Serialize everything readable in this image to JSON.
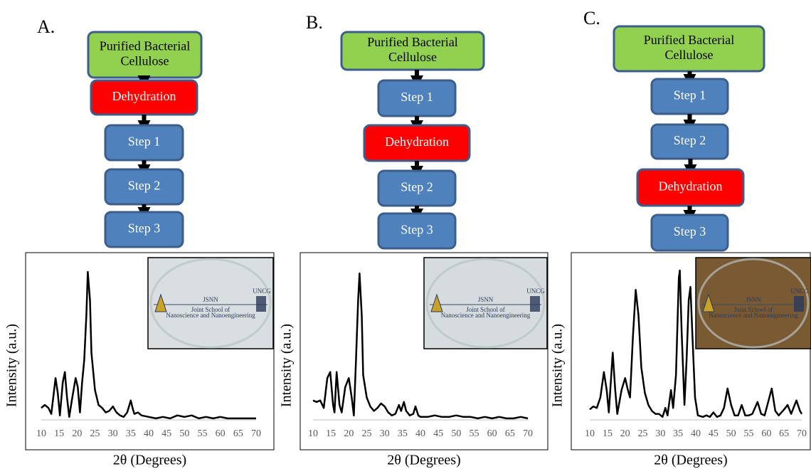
{
  "panels": [
    {
      "label": "A.",
      "flow": [
        {
          "lines": [
            "Purified Bacterial",
            "Cellulose"
          ],
          "color": "#92d050"
        },
        {
          "lines": [
            "Dehydration"
          ],
          "color": "#ff0000"
        },
        {
          "lines": [
            "Step 1"
          ],
          "color": "#4f81bd"
        },
        {
          "lines": [
            "Step 2"
          ],
          "color": "#4f81bd"
        },
        {
          "lines": [
            "Step 3"
          ],
          "color": "#4f81bd"
        }
      ],
      "inset": {
        "title": "JSNN",
        "subtitle": [
          "Joint School of",
          "Nanoscience and Nanoengineering"
        ],
        "logo": "UNCG",
        "color": "#d9dfe0"
      }
    },
    {
      "label": "B.",
      "flow": [
        {
          "lines": [
            "Purified Bacterial",
            "Cellulose"
          ],
          "color": "#92d050"
        },
        {
          "lines": [
            "Step 1"
          ],
          "color": "#4f81bd"
        },
        {
          "lines": [
            "Dehydration"
          ],
          "color": "#ff0000"
        },
        {
          "lines": [
            "Step 2"
          ],
          "color": "#4f81bd"
        },
        {
          "lines": [
            "Step 3"
          ],
          "color": "#4f81bd"
        }
      ],
      "inset": {
        "title": "JSNN",
        "subtitle": [
          "Joint School of",
          "Nanoscience and Nanoengineering"
        ],
        "logo": "UNCG",
        "color": "#d6dcdd"
      }
    },
    {
      "label": "C.",
      "flow": [
        {
          "lines": [
            "Purified Bacterial",
            "Cellulose"
          ],
          "color": "#92d050"
        },
        {
          "lines": [
            "Step 1"
          ],
          "color": "#4f81bd"
        },
        {
          "lines": [
            "Step 2"
          ],
          "color": "#4f81bd"
        },
        {
          "lines": [
            "Dehydration"
          ],
          "color": "#ff0000"
        },
        {
          "lines": [
            "Step 3"
          ],
          "color": "#4f81bd"
        }
      ],
      "inset": {
        "title": "JSNN",
        "subtitle": [
          "Joint School of",
          "Nanoscience and Nanoengineering"
        ],
        "logo": "UNCG",
        "color": "#7a5a32"
      }
    }
  ],
  "chart_data": [
    {
      "type": "line",
      "x_label": "2θ (Degrees)",
      "y_label": "Intensity (a.u.)",
      "xlim": [
        10,
        70
      ],
      "ylim": [
        0,
        100
      ],
      "xticks": [
        10,
        15,
        20,
        25,
        30,
        35,
        40,
        45,
        50,
        55,
        60,
        65,
        70
      ],
      "x": [
        10,
        11,
        12,
        12.8,
        13.6,
        14,
        14.6,
        15.2,
        16,
        16.6,
        17.2,
        17.8,
        18.6,
        19.6,
        20.2,
        20.8,
        21.4,
        22,
        22.6,
        23,
        23.6,
        24,
        25,
        26,
        27,
        28,
        29,
        30,
        31,
        32,
        33,
        34,
        35,
        35.6,
        36,
        37,
        38,
        40,
        42,
        44,
        46,
        48,
        50,
        52,
        54,
        56,
        58,
        60,
        62,
        64,
        66,
        68,
        70
      ],
      "series": [
        {
          "color": "#000000",
          "values": [
            8,
            10,
            8,
            4,
            20,
            28,
            18,
            3,
            25,
            32,
            15,
            2,
            14,
            28,
            22,
            5,
            25,
            40,
            70,
            99,
            80,
            45,
            20,
            10,
            8,
            5,
            6,
            9,
            5,
            3,
            2,
            5,
            13,
            7,
            4,
            5,
            3,
            2,
            1,
            2,
            1,
            3,
            2,
            3,
            1,
            2,
            1,
            2,
            1,
            1,
            1,
            1,
            1
          ]
        }
      ]
    },
    {
      "type": "line",
      "x_label": "2θ (Degrees)",
      "y_label": "Intensity (a.u.)",
      "xlim": [
        10,
        70
      ],
      "ylim": [
        0,
        100
      ],
      "xticks": [
        10,
        15,
        20,
        25,
        30,
        35,
        40,
        45,
        50,
        55,
        60,
        65,
        70
      ],
      "x": [
        10,
        11,
        12,
        13,
        14,
        14.8,
        15.6,
        16,
        16.6,
        17.4,
        18,
        19,
        20,
        20.8,
        21.4,
        22,
        22.6,
        23,
        23.6,
        24,
        25,
        26,
        27,
        28,
        29,
        30,
        31,
        32,
        33,
        34,
        34.6,
        35.4,
        36,
        37,
        38,
        38.6,
        39.4,
        40,
        42,
        44,
        46,
        48,
        50,
        52,
        54,
        56,
        58,
        60,
        62,
        64,
        66,
        68,
        70
      ],
      "series": [
        {
          "color": "#000000",
          "values": [
            13,
            12,
            13,
            8,
            28,
            32,
            10,
            5,
            32,
            10,
            5,
            22,
            28,
            15,
            3,
            40,
            80,
            98,
            70,
            30,
            15,
            9,
            6,
            8,
            11,
            9,
            5,
            3,
            4,
            10,
            6,
            12,
            6,
            3,
            4,
            9,
            3,
            2,
            2,
            3,
            2,
            2,
            3,
            2,
            2,
            1,
            2,
            1,
            2,
            1,
            1,
            2,
            1
          ]
        }
      ]
    },
    {
      "type": "line",
      "x_label": "2θ (Degrees)",
      "y_label": "Intensity (a.u.)",
      "xlim": [
        10,
        70
      ],
      "ylim": [
        0,
        100
      ],
      "xticks": [
        10,
        15,
        20,
        25,
        30,
        35,
        40,
        45,
        50,
        55,
        60,
        65,
        70
      ],
      "x": [
        10,
        11,
        12,
        13,
        14,
        14.8,
        15.4,
        16.5,
        17.2,
        17.8,
        19,
        20,
        20.8,
        21.4,
        22.2,
        23,
        23.8,
        24.6,
        25.6,
        26.6,
        27.6,
        28.6,
        29.6,
        30.6,
        31.4,
        32,
        33,
        33.6,
        34.4,
        35.2,
        35.5,
        36,
        36.8,
        37.4,
        38,
        38.5,
        39,
        39.8,
        40.6,
        42,
        43,
        44,
        45,
        46,
        47,
        48,
        49,
        50,
        51,
        52,
        53,
        54,
        55,
        56,
        57.5,
        58.5,
        59.5,
        60.5,
        61.5,
        62.5,
        63.5,
        65,
        66,
        67,
        68.5,
        69.5,
        70
      ],
      "series": [
        {
          "color": "#000000",
          "values": [
            7,
            9,
            8,
            15,
            32,
            20,
            5,
            45,
            20,
            4,
            20,
            28,
            20,
            15,
            55,
            87,
            70,
            35,
            18,
            10,
            6,
            4,
            4,
            2,
            8,
            3,
            20,
            8,
            30,
            95,
            100,
            60,
            10,
            40,
            80,
            89,
            60,
            15,
            3,
            2,
            3,
            2,
            5,
            2,
            3,
            8,
            21,
            10,
            3,
            3,
            10,
            3,
            3,
            4,
            12,
            4,
            3,
            12,
            21,
            6,
            3,
            7,
            10,
            4,
            13,
            6,
            4
          ]
        }
      ]
    }
  ]
}
